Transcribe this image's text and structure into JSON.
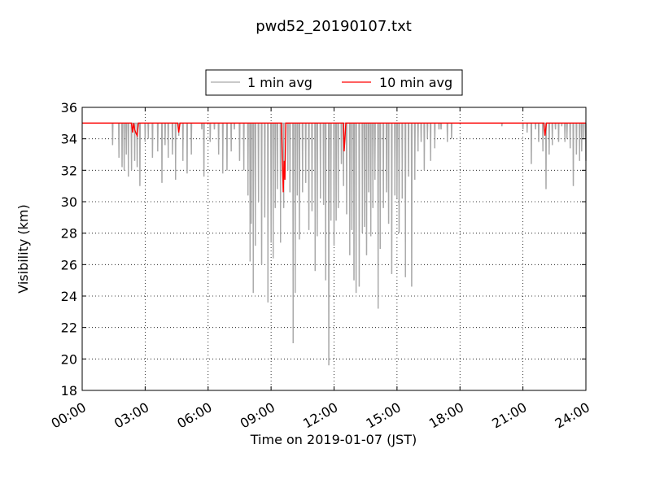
{
  "chart_data": {
    "type": "line",
    "title": "pwd52_20190107.txt",
    "xlabel": "Time on 2019-01-07 (JST)",
    "ylabel": "Visibility (km)",
    "xlim_hours": [
      0,
      24
    ],
    "ylim": [
      18,
      36
    ],
    "x_ticks": [
      {
        "hour": 0,
        "label": "00:00"
      },
      {
        "hour": 3,
        "label": "03:00"
      },
      {
        "hour": 6,
        "label": "06:00"
      },
      {
        "hour": 9,
        "label": "09:00"
      },
      {
        "hour": 12,
        "label": "12:00"
      },
      {
        "hour": 15,
        "label": "15:00"
      },
      {
        "hour": 18,
        "label": "18:00"
      },
      {
        "hour": 21,
        "label": "21:00"
      },
      {
        "hour": 24,
        "label": "24:00"
      }
    ],
    "y_ticks": [
      18,
      20,
      22,
      24,
      26,
      28,
      30,
      32,
      34,
      36
    ],
    "grid": true,
    "legend_placement": "top-center",
    "colors": {
      "one_min": "#a9a9a9",
      "ten_min": "#ff0000"
    },
    "baseline_value": 35,
    "series": [
      {
        "name": "1 min avg",
        "color": "#a9a9a9",
        "dips_hours_min_value": [
          [
            1.45,
            33.6
          ],
          [
            1.75,
            32.8
          ],
          [
            1.9,
            32.2
          ],
          [
            2.0,
            32.0
          ],
          [
            2.1,
            33.0
          ],
          [
            2.2,
            31.6
          ],
          [
            2.35,
            32.0
          ],
          [
            2.5,
            32.6
          ],
          [
            2.62,
            32.2
          ],
          [
            2.75,
            31.0
          ],
          [
            3.0,
            33.8
          ],
          [
            3.15,
            34.0
          ],
          [
            3.35,
            32.8
          ],
          [
            3.6,
            33.2
          ],
          [
            3.8,
            31.2
          ],
          [
            3.95,
            33.6
          ],
          [
            4.1,
            32.8
          ],
          [
            4.3,
            33.0
          ],
          [
            4.45,
            31.4
          ],
          [
            4.6,
            34.2
          ],
          [
            4.8,
            32.6
          ],
          [
            5.0,
            31.8
          ],
          [
            5.2,
            33.0
          ],
          [
            5.7,
            34.6
          ],
          [
            5.8,
            31.6
          ],
          [
            6.1,
            33.8
          ],
          [
            6.3,
            34.6
          ],
          [
            6.5,
            33.0
          ],
          [
            6.7,
            31.8
          ],
          [
            6.9,
            32.0
          ],
          [
            7.1,
            33.2
          ],
          [
            7.25,
            34.6
          ],
          [
            7.5,
            32.6
          ],
          [
            7.7,
            32.0
          ],
          [
            7.9,
            30.4
          ],
          [
            8.0,
            26.2
          ],
          [
            8.05,
            28.6
          ],
          [
            8.15,
            24.2
          ],
          [
            8.25,
            27.2
          ],
          [
            8.4,
            30.0
          ],
          [
            8.55,
            26.0
          ],
          [
            8.7,
            29.0
          ],
          [
            8.85,
            23.6
          ],
          [
            9.0,
            27.4
          ],
          [
            9.1,
            26.4
          ],
          [
            9.2,
            29.6
          ],
          [
            9.3,
            30.8
          ],
          [
            9.45,
            27.4
          ],
          [
            9.6,
            29.6
          ],
          [
            9.8,
            32.0
          ],
          [
            9.9,
            30.6
          ],
          [
            10.05,
            21.0
          ],
          [
            10.15,
            24.2
          ],
          [
            10.25,
            30.4
          ],
          [
            10.35,
            27.6
          ],
          [
            10.5,
            30.6
          ],
          [
            10.65,
            31.2
          ],
          [
            10.8,
            28.2
          ],
          [
            10.95,
            29.4
          ],
          [
            11.1,
            25.6
          ],
          [
            11.2,
            27.8
          ],
          [
            11.35,
            30.2
          ],
          [
            11.5,
            29.8
          ],
          [
            11.6,
            25.0
          ],
          [
            11.75,
            19.6
          ],
          [
            11.85,
            28.8
          ],
          [
            12.0,
            27.2
          ],
          [
            12.1,
            28.8
          ],
          [
            12.2,
            29.6
          ],
          [
            12.35,
            32.4
          ],
          [
            12.45,
            31.0
          ],
          [
            12.6,
            29.2
          ],
          [
            12.75,
            26.6
          ],
          [
            12.85,
            28.2
          ],
          [
            12.95,
            25.0
          ],
          [
            13.05,
            24.2
          ],
          [
            13.2,
            24.6
          ],
          [
            13.35,
            28.0
          ],
          [
            13.45,
            28.4
          ],
          [
            13.55,
            26.6
          ],
          [
            13.65,
            30.6
          ],
          [
            13.75,
            27.8
          ],
          [
            13.85,
            29.6
          ],
          [
            13.95,
            31.4
          ],
          [
            14.1,
            23.2
          ],
          [
            14.2,
            27.0
          ],
          [
            14.35,
            29.6
          ],
          [
            14.5,
            30.6
          ],
          [
            14.6,
            28.6
          ],
          [
            14.75,
            25.4
          ],
          [
            14.9,
            30.4
          ],
          [
            15.0,
            30.2
          ],
          [
            15.1,
            28.0
          ],
          [
            15.25,
            30.2
          ],
          [
            15.4,
            25.2
          ],
          [
            15.55,
            31.6
          ],
          [
            15.7,
            24.6
          ],
          [
            15.85,
            31.4
          ],
          [
            16.0,
            33.2
          ],
          [
            16.15,
            33.8
          ],
          [
            16.3,
            32.0
          ],
          [
            16.45,
            34.0
          ],
          [
            16.6,
            32.6
          ],
          [
            16.8,
            33.4
          ],
          [
            17.0,
            34.6
          ],
          [
            17.1,
            34.6
          ],
          [
            17.4,
            33.8
          ],
          [
            17.6,
            34.0
          ],
          [
            20.0,
            34.8
          ],
          [
            21.0,
            34.6
          ],
          [
            21.2,
            34.4
          ],
          [
            21.4,
            32.4
          ],
          [
            21.6,
            34.6
          ],
          [
            21.75,
            33.8
          ],
          [
            21.95,
            33.2
          ],
          [
            22.1,
            30.8
          ],
          [
            22.25,
            33.0
          ],
          [
            22.4,
            33.6
          ],
          [
            22.55,
            34.6
          ],
          [
            22.7,
            33.8
          ],
          [
            22.85,
            34.8
          ],
          [
            23.0,
            33.8
          ],
          [
            23.1,
            34.0
          ],
          [
            23.25,
            33.4
          ],
          [
            23.4,
            31.0
          ],
          [
            23.55,
            33.0
          ],
          [
            23.7,
            32.6
          ],
          [
            23.8,
            33.2
          ],
          [
            23.9,
            34.0
          ],
          [
            24.0,
            32.6
          ]
        ]
      },
      {
        "name": "10 min avg",
        "color": "#ff0000",
        "points_hours_value": [
          [
            0.0,
            35.0
          ],
          [
            2.35,
            35.0
          ],
          [
            2.4,
            34.4
          ],
          [
            2.45,
            35.0
          ],
          [
            2.5,
            34.6
          ],
          [
            2.55,
            34.4
          ],
          [
            2.62,
            34.2
          ],
          [
            2.68,
            35.0
          ],
          [
            4.55,
            35.0
          ],
          [
            4.6,
            34.4
          ],
          [
            4.66,
            35.0
          ],
          [
            9.5,
            35.0
          ],
          [
            9.53,
            33.0
          ],
          [
            9.56,
            31.6
          ],
          [
            9.58,
            30.6
          ],
          [
            9.62,
            32.6
          ],
          [
            9.66,
            31.4
          ],
          [
            9.7,
            35.0
          ],
          [
            12.45,
            35.0
          ],
          [
            12.48,
            33.2
          ],
          [
            12.52,
            34.0
          ],
          [
            12.56,
            35.0
          ],
          [
            22.0,
            35.0
          ],
          [
            22.05,
            34.2
          ],
          [
            22.12,
            35.0
          ],
          [
            24.0,
            35.0
          ]
        ]
      }
    ]
  }
}
